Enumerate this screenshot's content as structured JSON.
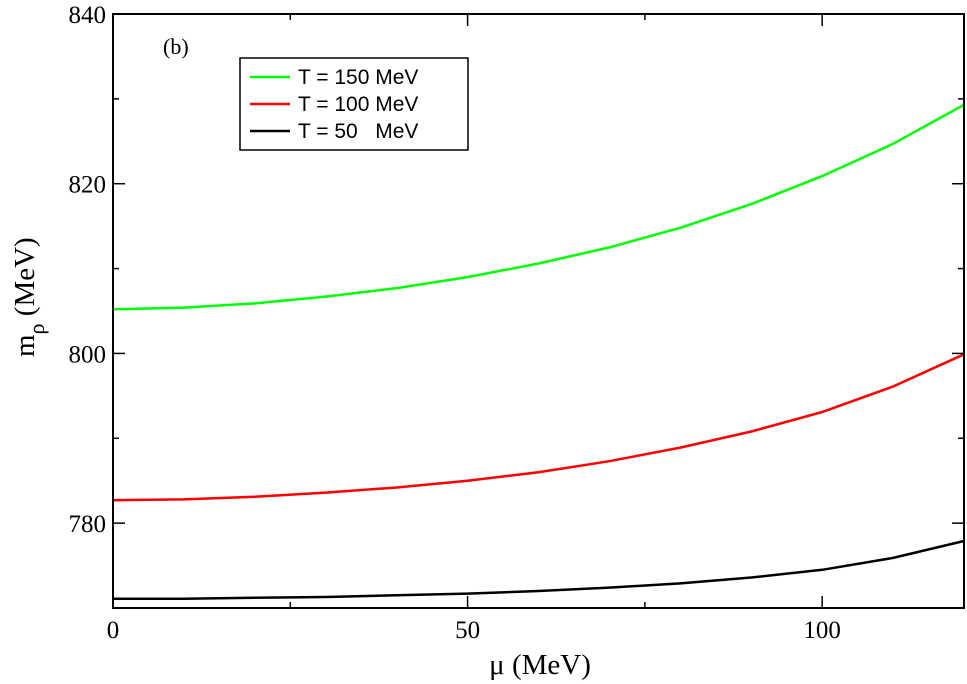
{
  "chart_data": {
    "type": "line",
    "title": "",
    "annotation": "(b)",
    "xlabel": "μ (MeV)",
    "ylabel_main": "m",
    "ylabel_sub": "ρ",
    "ylabel_unit": " (MeV)",
    "xlim": [
      0,
      120
    ],
    "ylim": [
      770,
      840
    ],
    "x_major_ticks": [
      0,
      50,
      100
    ],
    "x_minor_ticks": [
      25,
      75
    ],
    "y_major_ticks": [
      780,
      800,
      820,
      840
    ],
    "y_minor_ticks": [
      790,
      810,
      830
    ],
    "x_tick_labels": [
      "0",
      "50",
      "100"
    ],
    "y_tick_labels": [
      "780",
      "800",
      "820",
      "840"
    ],
    "grid": false,
    "legend_position": "top-left",
    "series": [
      {
        "name": "T = 150 MeV",
        "color": "#00ff00",
        "x": [
          0,
          10,
          20,
          30,
          40,
          50,
          60,
          70,
          80,
          90,
          100,
          110,
          120
        ],
        "y": [
          805.2,
          805.4,
          805.9,
          806.7,
          807.7,
          809.0,
          810.6,
          812.5,
          814.8,
          817.6,
          820.9,
          824.7,
          829.3
        ]
      },
      {
        "name": "T = 100 MeV",
        "color": "#ff0000",
        "x": [
          0,
          10,
          20,
          30,
          40,
          50,
          60,
          70,
          80,
          90,
          100,
          110,
          120
        ],
        "y": [
          782.7,
          782.8,
          783.1,
          783.6,
          784.2,
          785.0,
          786.0,
          787.3,
          788.9,
          790.8,
          793.1,
          796.1,
          799.9
        ]
      },
      {
        "name": "T = 50   MeV",
        "color": "#000000",
        "x": [
          0,
          10,
          20,
          30,
          40,
          50,
          60,
          70,
          80,
          90,
          100,
          110,
          120
        ],
        "y": [
          771.1,
          771.1,
          771.2,
          771.3,
          771.5,
          771.7,
          772.0,
          772.4,
          772.9,
          773.6,
          774.5,
          775.9,
          777.9
        ]
      }
    ]
  }
}
